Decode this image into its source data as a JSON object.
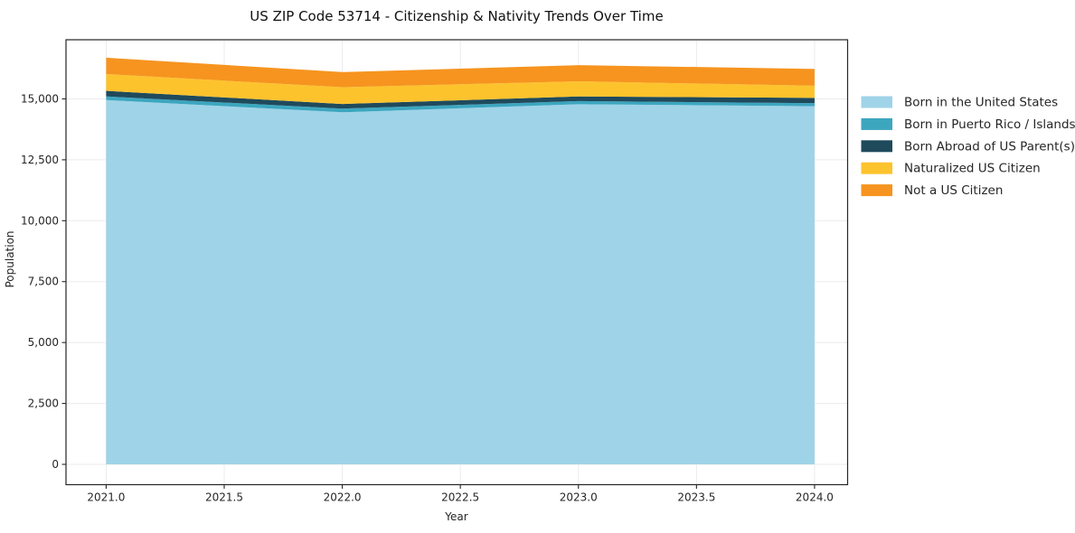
{
  "chart_data": {
    "type": "area",
    "stacked": true,
    "title": "US ZIP Code 53714 - Citizenship & Nativity Trends Over Time",
    "xlabel": "Year",
    "ylabel": "Population",
    "x": [
      2021,
      2022,
      2023,
      2024
    ],
    "series": [
      {
        "name": "Born in the United States",
        "color": "#9fd3e8",
        "values": [
          14950,
          14450,
          14780,
          14700
        ]
      },
      {
        "name": "Born in Puerto Rico / Islands",
        "color": "#3ca6bf",
        "values": [
          150,
          150,
          130,
          125
        ]
      },
      {
        "name": "Born Abroad of US Parent(s)",
        "color": "#1f4a5c",
        "values": [
          230,
          190,
          190,
          215
        ]
      },
      {
        "name": "Naturalized US Citizen",
        "color": "#fdc32d",
        "values": [
          690,
          690,
          620,
          500
        ]
      },
      {
        "name": "Not a US Citizen",
        "color": "#f6941f",
        "values": [
          670,
          620,
          665,
          690
        ]
      }
    ],
    "x_ticks": [
      2021.0,
      2021.5,
      2022.0,
      2022.5,
      2023.0,
      2023.5,
      2024.0
    ],
    "x_tick_labels": [
      "2021.0",
      "2021.5",
      "2022.0",
      "2022.5",
      "2023.0",
      "2023.5",
      "2024.0"
    ],
    "y_ticks": [
      0,
      2500,
      5000,
      7500,
      10000,
      12500,
      15000
    ],
    "y_tick_labels": [
      "0",
      "2,500",
      "5,000",
      "7,500",
      "10,000",
      "12,500",
      "15,000"
    ],
    "xlim": [
      2020.83,
      2024.14
    ],
    "ylim": [
      -834,
      17427
    ],
    "grid": true,
    "grid_color": "#ebebeb",
    "spine_color": "#262626",
    "legend_position": "right"
  }
}
